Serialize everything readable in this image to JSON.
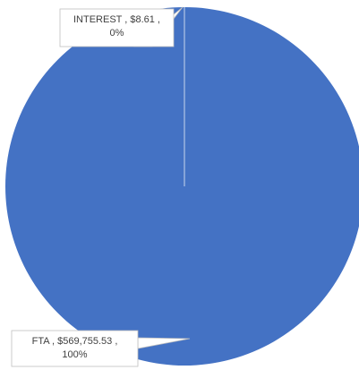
{
  "chart_data": {
    "type": "pie",
    "title": "",
    "series": [
      {
        "values": [
          8.61,
          569755.53
        ],
        "categories": [
          "INTEREST",
          "FTA"
        ],
        "colors": [
          "#4472C4",
          "#4472C4"
        ]
      }
    ],
    "data_labels": [
      {
        "line1": "INTEREST , $8.61 ,",
        "line2": "0%"
      },
      {
        "line1": "FTA , $569,755.53 ,",
        "line2": "100%"
      }
    ],
    "legend": "none",
    "start_angle": "top, clockwise"
  }
}
